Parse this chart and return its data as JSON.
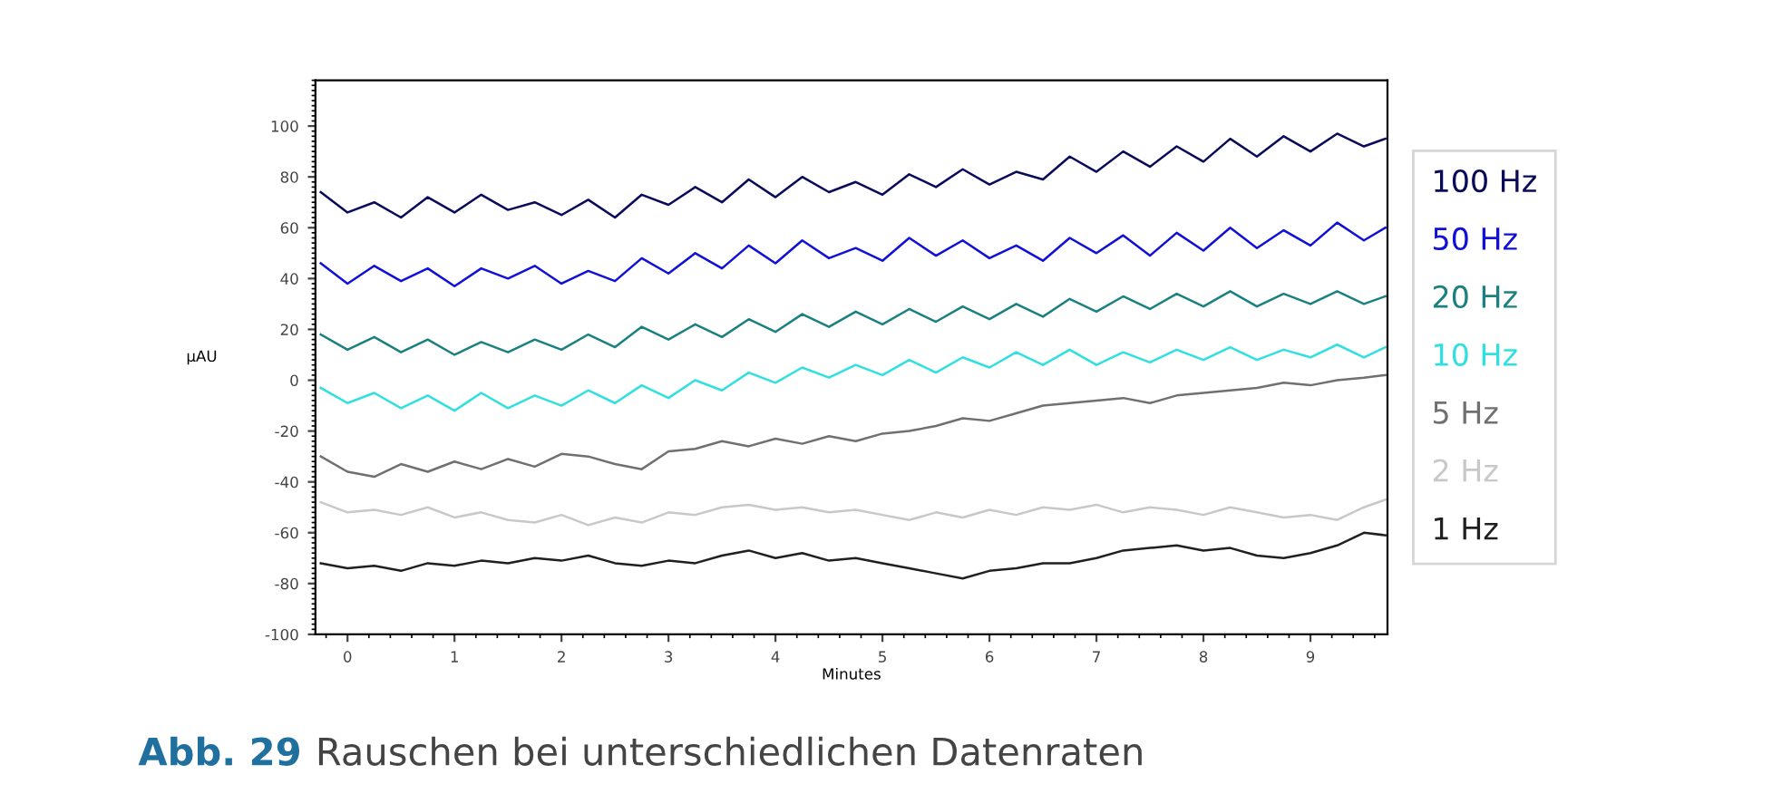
{
  "chart_data": {
    "type": "line",
    "xlabel": "Minutes",
    "ylabel": "µAU",
    "xlim": [
      -0.3,
      9.72
    ],
    "xticks": [
      0,
      1,
      2,
      3,
      4,
      5,
      6,
      7,
      8,
      9
    ],
    "ylim": [
      -100,
      118
    ],
    "yticks": [
      -100,
      -80,
      -60,
      -40,
      -20,
      0,
      20,
      40,
      60,
      80,
      100
    ],
    "grid": false,
    "legend": "right",
    "marker": "none",
    "line_style": "solid",
    "annotations": [
      "Abb. 29",
      "Rauschen bei unterschiedlichen Datenraten"
    ],
    "x": [
      -0.25,
      0,
      0.25,
      0.5,
      0.75,
      1,
      1.25,
      1.5,
      1.75,
      2,
      2.25,
      2.5,
      2.75,
      3,
      3.25,
      3.5,
      3.75,
      4,
      4.25,
      4.5,
      4.75,
      5,
      5.25,
      5.5,
      5.75,
      6,
      6.25,
      6.5,
      6.75,
      7,
      7.25,
      7.5,
      7.75,
      8,
      8.25,
      8.5,
      8.75,
      9,
      9.25,
      9.5,
      9.7
    ],
    "series": [
      {
        "name": "100 Hz",
        "color": "#0a0a5a",
        "values": [
          74,
          66,
          70,
          64,
          72,
          66,
          73,
          67,
          70,
          65,
          71,
          64,
          73,
          69,
          76,
          70,
          79,
          72,
          80,
          74,
          78,
          73,
          81,
          76,
          83,
          77,
          82,
          79,
          88,
          82,
          90,
          84,
          92,
          86,
          95,
          88,
          96,
          90,
          97,
          92,
          95
        ]
      },
      {
        "name": "50 Hz",
        "color": "#1010d8",
        "values": [
          46,
          38,
          45,
          39,
          44,
          37,
          44,
          40,
          45,
          38,
          43,
          39,
          48,
          42,
          50,
          44,
          53,
          46,
          55,
          48,
          52,
          47,
          56,
          49,
          55,
          48,
          53,
          47,
          56,
          50,
          57,
          49,
          58,
          51,
          60,
          52,
          59,
          53,
          62,
          55,
          60
        ]
      },
      {
        "name": "20 Hz",
        "color": "#1a8080",
        "values": [
          18,
          12,
          17,
          11,
          16,
          10,
          15,
          11,
          16,
          12,
          18,
          13,
          21,
          16,
          22,
          17,
          24,
          19,
          26,
          21,
          27,
          22,
          28,
          23,
          29,
          24,
          30,
          25,
          32,
          27,
          33,
          28,
          34,
          29,
          35,
          29,
          34,
          30,
          35,
          30,
          33
        ]
      },
      {
        "name": "10 Hz",
        "color": "#30e0e0",
        "values": [
          -3,
          -9,
          -5,
          -11,
          -6,
          -12,
          -5,
          -11,
          -6,
          -10,
          -4,
          -9,
          -2,
          -7,
          0,
          -4,
          3,
          -1,
          5,
          1,
          6,
          2,
          8,
          3,
          9,
          5,
          11,
          6,
          12,
          6,
          11,
          7,
          12,
          8,
          13,
          8,
          12,
          9,
          14,
          9,
          13
        ]
      },
      {
        "name": "5 Hz",
        "color": "#707070",
        "values": [
          -30,
          -36,
          -38,
          -33,
          -36,
          -32,
          -35,
          -31,
          -34,
          -29,
          -30,
          -33,
          -35,
          -28,
          -27,
          -24,
          -26,
          -23,
          -25,
          -22,
          -24,
          -21,
          -20,
          -18,
          -15,
          -16,
          -13,
          -10,
          -9,
          -8,
          -7,
          -9,
          -6,
          -5,
          -4,
          -3,
          -1,
          -2,
          0,
          1,
          2
        ]
      },
      {
        "name": "2 Hz",
        "color": "#c8c8c8",
        "values": [
          -48,
          -52,
          -51,
          -53,
          -50,
          -54,
          -52,
          -55,
          -56,
          -53,
          -57,
          -54,
          -56,
          -52,
          -53,
          -50,
          -49,
          -51,
          -50,
          -52,
          -51,
          -53,
          -55,
          -52,
          -54,
          -51,
          -53,
          -50,
          -51,
          -49,
          -52,
          -50,
          -51,
          -53,
          -50,
          -52,
          -54,
          -53,
          -55,
          -50,
          -47
        ]
      },
      {
        "name": "1 Hz",
        "color": "#202020",
        "values": [
          -72,
          -74,
          -73,
          -75,
          -72,
          -73,
          -71,
          -72,
          -70,
          -71,
          -69,
          -72,
          -73,
          -71,
          -72,
          -69,
          -67,
          -70,
          -68,
          -71,
          -70,
          -72,
          -74,
          -76,
          -78,
          -75,
          -74,
          -72,
          -72,
          -70,
          -67,
          -66,
          -65,
          -67,
          -66,
          -69,
          -70,
          -68,
          -65,
          -60,
          -61
        ]
      }
    ]
  }
}
